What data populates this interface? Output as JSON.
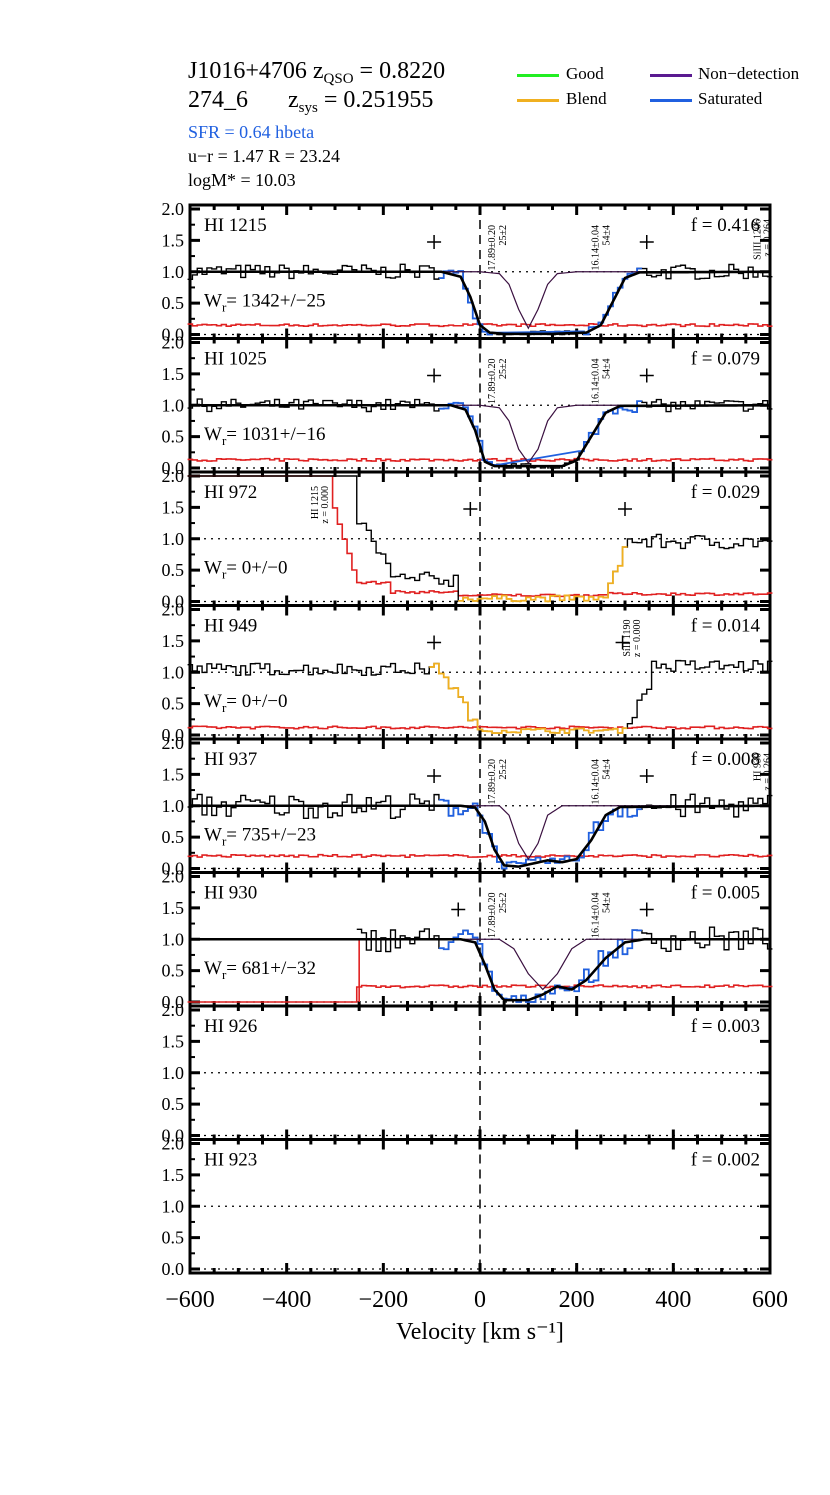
{
  "header": {
    "object": "J1016+4706",
    "zqso_label": "z",
    "zqso_sub": "QSO",
    "zqso_value": " = 0.8220",
    "system": "274_6",
    "zsys_label": "z",
    "zsys_sub": "sys",
    "zsys_value": " = 0.251955",
    "sfr": "SFR =  0.64  hbeta",
    "ur": "u−r = 1.47   R =  23.24",
    "logm": "logM* =  10.03"
  },
  "legend": [
    {
      "label": "Good",
      "color": "#22ee22"
    },
    {
      "label": "Blend",
      "color": "#f0b020"
    },
    {
      "label": "Non−detection",
      "color": "#5a1a90"
    },
    {
      "label": "Saturated",
      "color": "#2060e0"
    }
  ],
  "colors": {
    "flux": "#000000",
    "error": "#e02020",
    "blue": "#2060e0",
    "blend": "#f0b020",
    "component": "#3a1040"
  },
  "chart_data": {
    "type": "line",
    "xlabel": "Velocity [km s⁻¹]",
    "xlim": [
      -600,
      600
    ],
    "xticks": [
      -600,
      -400,
      -200,
      0,
      200,
      400,
      600
    ],
    "ylim": [
      0,
      2
    ],
    "yticks": [
      "0.0",
      "0.5",
      "1.0",
      "1.5",
      "2.0"
    ],
    "components": [
      {
        "label_n": "17.89±0.20",
        "label_b": "25±2",
        "v": 0
      },
      {
        "label_n": "16.14±0.04",
        "label_b": "54±4",
        "v": 100
      }
    ],
    "panels": [
      {
        "name": "HI 1215",
        "f": "f = 0.416",
        "wr": "= 1342+/−25",
        "fit": true,
        "comps_shown": true,
        "plus": [
          -95,
          345
        ],
        "side_label": {
          "l1": "SiIII 1206",
          "l2": "z = 0.264",
          "v": 580
        },
        "fit_points": [
          [
            -600,
            1.0
          ],
          [
            -80,
            1.0
          ],
          [
            -40,
            0.92
          ],
          [
            -20,
            0.6
          ],
          [
            0,
            0.15
          ],
          [
            20,
            0.03
          ],
          [
            50,
            0.01
          ],
          [
            150,
            0.01
          ],
          [
            220,
            0.03
          ],
          [
            250,
            0.15
          ],
          [
            280,
            0.6
          ],
          [
            300,
            0.9
          ],
          [
            330,
            0.99
          ],
          [
            600,
            1.0
          ]
        ],
        "comp_points": [
          [
            -600,
            1.0
          ],
          [
            0,
            1.0
          ],
          [
            40,
            0.97
          ],
          [
            60,
            0.8
          ],
          [
            80,
            0.4
          ],
          [
            100,
            0.1
          ],
          [
            120,
            0.4
          ],
          [
            140,
            0.8
          ],
          [
            160,
            0.97
          ],
          [
            200,
            1.0
          ],
          [
            600,
            1.0
          ]
        ],
        "error_level": 0.15,
        "noise": 0.12
      },
      {
        "name": "HI 1025",
        "f": "f = 0.079",
        "wr": "= 1031+/−16",
        "fit": true,
        "comps_shown": true,
        "plus": [
          -95,
          345
        ],
        "fit_points": [
          [
            -600,
            1.0
          ],
          [
            -60,
            1.0
          ],
          [
            -30,
            0.93
          ],
          [
            -10,
            0.6
          ],
          [
            10,
            0.1
          ],
          [
            30,
            0.03
          ],
          [
            170,
            0.03
          ],
          [
            200,
            0.12
          ],
          [
            230,
            0.5
          ],
          [
            260,
            0.88
          ],
          [
            290,
            0.99
          ],
          [
            600,
            1.0
          ]
        ],
        "comp_points": [
          [
            -600,
            1.0
          ],
          [
            0,
            1.0
          ],
          [
            40,
            0.96
          ],
          [
            60,
            0.75
          ],
          [
            80,
            0.3
          ],
          [
            100,
            0.08
          ],
          [
            120,
            0.3
          ],
          [
            140,
            0.75
          ],
          [
            160,
            0.96
          ],
          [
            200,
            1.0
          ],
          [
            600,
            1.0
          ]
        ],
        "error_level": 0.13,
        "noise": 0.1
      },
      {
        "name": "HI 972",
        "f": "f = 0.029",
        "wr": "= 0+/−0",
        "fit": false,
        "comps_shown": false,
        "plus": [
          -20,
          300
        ],
        "side_label": {
          "l1": "HI 1215",
          "l2": "z = 0.000",
          "v": -335
        },
        "error_level": 0.12,
        "noise": 0.12
      },
      {
        "name": "HI 949",
        "f": "f = 0.014",
        "wr": "= 0+/−0",
        "fit": false,
        "comps_shown": false,
        "plus": [
          -95,
          295
        ],
        "side_label": {
          "l1": "SiII 1190",
          "l2": "z = 0.000",
          "v": 310
        },
        "error_level": 0.12,
        "noise": 0.1
      },
      {
        "name": "HI 937",
        "f": "f = 0.008",
        "wr": "= 735+/−23",
        "fit": true,
        "comps_shown": true,
        "plus": [
          -95,
          345
        ],
        "side_label": {
          "l1": "HI 930",
          "l2": "z = 0.264",
          "v": 580
        },
        "fit_points": [
          [
            -600,
            1.0
          ],
          [
            -40,
            1.0
          ],
          [
            -10,
            0.97
          ],
          [
            10,
            0.75
          ],
          [
            30,
            0.3
          ],
          [
            50,
            0.05
          ],
          [
            80,
            0.03
          ],
          [
            110,
            0.08
          ],
          [
            140,
            0.13
          ],
          [
            170,
            0.1
          ],
          [
            200,
            0.15
          ],
          [
            230,
            0.45
          ],
          [
            260,
            0.85
          ],
          [
            290,
            0.98
          ],
          [
            600,
            1.0
          ]
        ],
        "comp_points": [
          [
            -600,
            1.0
          ],
          [
            40,
            1.0
          ],
          [
            60,
            0.85
          ],
          [
            80,
            0.4
          ],
          [
            100,
            0.15
          ],
          [
            120,
            0.4
          ],
          [
            140,
            0.85
          ],
          [
            170,
            1.0
          ],
          [
            600,
            1.0
          ]
        ],
        "error_level": 0.2,
        "noise": 0.2
      },
      {
        "name": "HI 930",
        "f": "f = 0.005",
        "wr": "= 681+/−32",
        "fit": true,
        "comps_shown": true,
        "plus": [
          -45,
          345
        ],
        "fit_points": [
          [
            -600,
            1.0
          ],
          [
            -40,
            1.0
          ],
          [
            -10,
            0.95
          ],
          [
            10,
            0.6
          ],
          [
            30,
            0.2
          ],
          [
            50,
            0.03
          ],
          [
            100,
            0.03
          ],
          [
            130,
            0.12
          ],
          [
            160,
            0.25
          ],
          [
            190,
            0.2
          ],
          [
            220,
            0.35
          ],
          [
            260,
            0.7
          ],
          [
            300,
            0.95
          ],
          [
            340,
            1.0
          ],
          [
            600,
            1.0
          ]
        ],
        "comp_points": [
          [
            -600,
            1.0
          ],
          [
            40,
            1.0
          ],
          [
            70,
            0.85
          ],
          [
            100,
            0.45
          ],
          [
            130,
            0.2
          ],
          [
            160,
            0.45
          ],
          [
            190,
            0.85
          ],
          [
            220,
            1.0
          ],
          [
            600,
            1.0
          ]
        ],
        "error_level": 0.25,
        "noise": 0.2
      },
      {
        "name": "HI 926",
        "f": "f = 0.003",
        "wr": "",
        "fit": false,
        "comps_shown": false,
        "empty": true
      },
      {
        "name": "HI 923",
        "f": "f = 0.002",
        "wr": "",
        "fit": false,
        "comps_shown": false,
        "empty": true
      }
    ]
  }
}
